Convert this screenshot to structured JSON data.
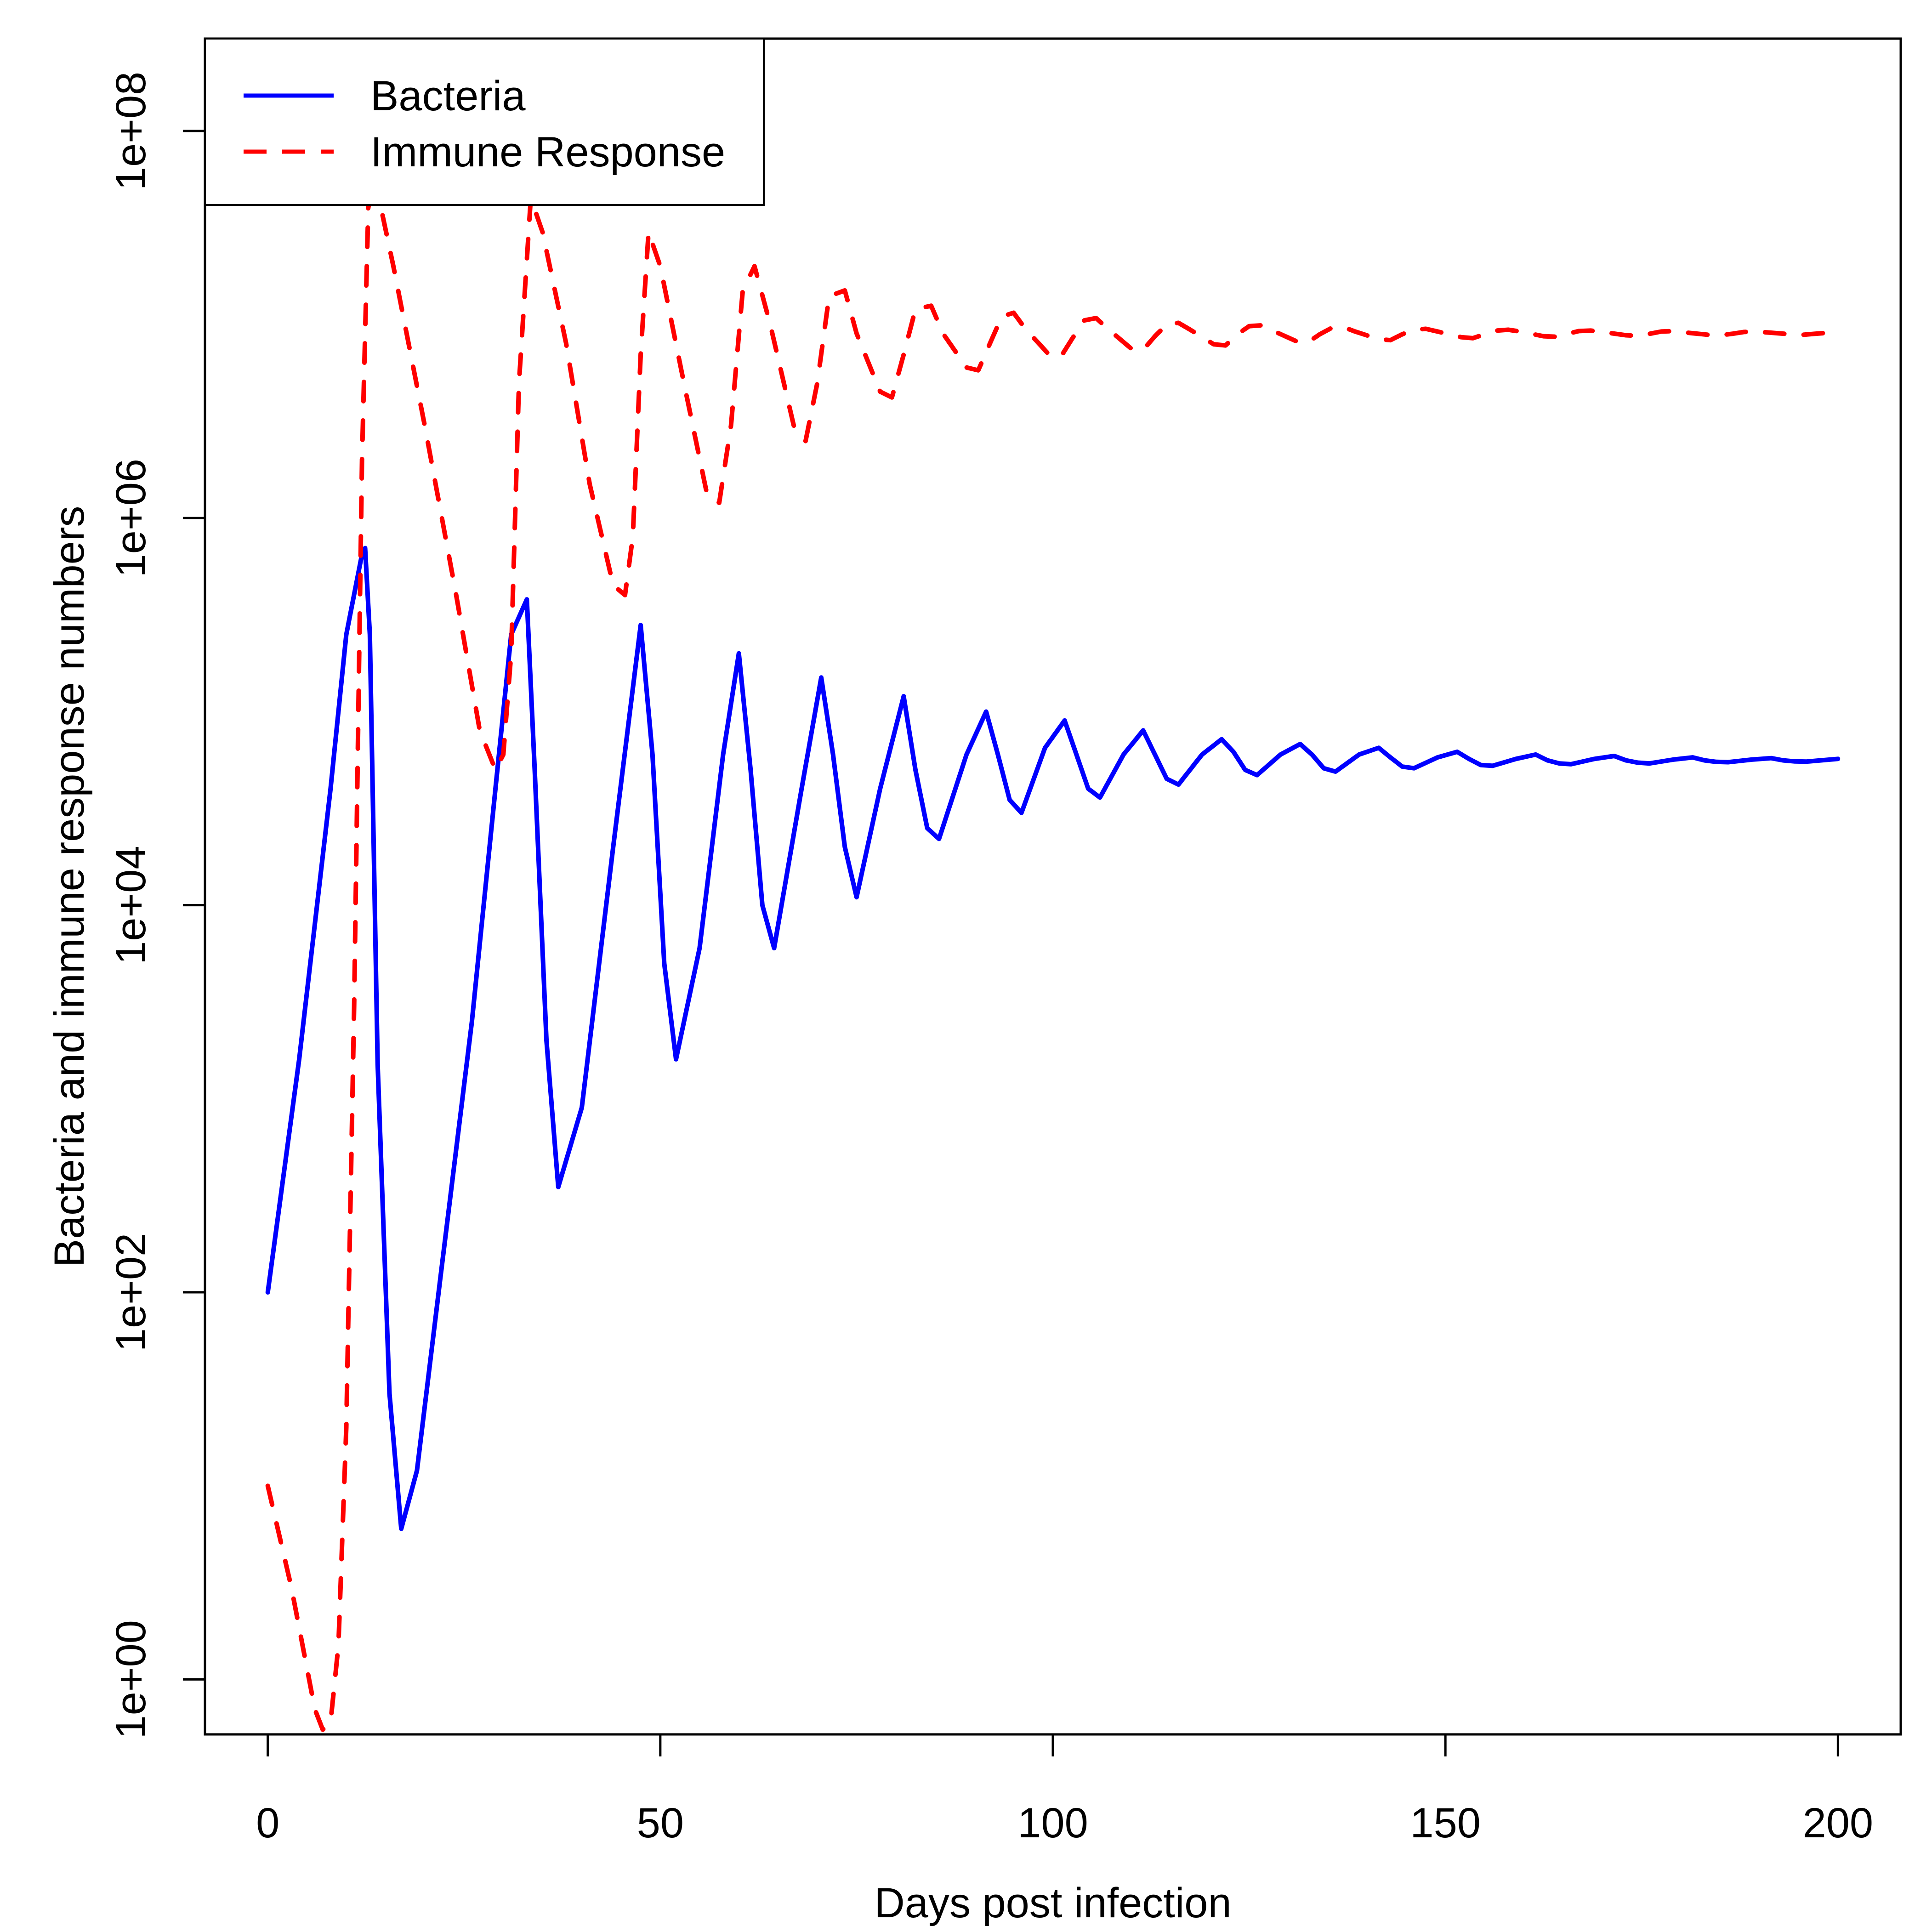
{
  "chart_data": {
    "type": "line",
    "title": "",
    "xlabel": "Days post infection",
    "ylabel": "Bacteria and immune response numbers",
    "xlim": [
      -8,
      208
    ],
    "ylim": [
      0.52,
      300000000
    ],
    "y_scale": "log",
    "grid": false,
    "legend_position": "top-left",
    "x_ticks": [
      {
        "value": 0,
        "label": "0"
      },
      {
        "value": 50,
        "label": "50"
      },
      {
        "value": 100,
        "label": "100"
      },
      {
        "value": 150,
        "label": "150"
      },
      {
        "value": 200,
        "label": "200"
      }
    ],
    "y_ticks": [
      {
        "value": 1,
        "label": "1e+00"
      },
      {
        "value": 100,
        "label": "1e+02"
      },
      {
        "value": 10000,
        "label": "1e+04"
      },
      {
        "value": 1000000,
        "label": "1e+06"
      },
      {
        "value": 100000000,
        "label": "1e+08"
      }
    ],
    "series": [
      {
        "name": "Bacteria",
        "color": "#0000ff",
        "line_style": "solid",
        "points": [
          [
            0,
            100
          ],
          [
            4,
            1600
          ],
          [
            8,
            40000
          ],
          [
            10,
            250000
          ],
          [
            12,
            650000
          ],
          [
            12.4,
            700000
          ],
          [
            13,
            250000
          ],
          [
            14,
            1500
          ],
          [
            15.5,
            30
          ],
          [
            17,
            6
          ],
          [
            19,
            12
          ],
          [
            22,
            120
          ],
          [
            26,
            2500
          ],
          [
            29,
            40000
          ],
          [
            31,
            250000
          ],
          [
            33,
            380000
          ],
          [
            34,
            50000
          ],
          [
            35.5,
            2000
          ],
          [
            37,
            350
          ],
          [
            40,
            900
          ],
          [
            44,
            20000
          ],
          [
            47.5,
            280000
          ],
          [
            49,
            60000
          ],
          [
            50.5,
            5000
          ],
          [
            52,
            1600
          ],
          [
            55,
            6000
          ],
          [
            58,
            60000
          ],
          [
            60,
            200000
          ],
          [
            61.5,
            50000
          ],
          [
            63,
            10000
          ],
          [
            64.5,
            6000
          ],
          [
            68,
            40000
          ],
          [
            70.5,
            150000
          ],
          [
            72,
            60000
          ],
          [
            73.5,
            20000
          ],
          [
            75,
            11000
          ],
          [
            78,
            40000
          ],
          [
            81,
            120000
          ],
          [
            82.5,
            50000
          ],
          [
            84,
            25000
          ],
          [
            85.5,
            22000
          ],
          [
            89,
            60000
          ],
          [
            91.5,
            100000
          ],
          [
            93,
            60000
          ],
          [
            94.5,
            35000
          ],
          [
            96,
            30000
          ],
          [
            99,
            65000
          ],
          [
            101.5,
            90000
          ],
          [
            103,
            60000
          ],
          [
            104.5,
            40000
          ],
          [
            106,
            36000
          ],
          [
            109,
            60000
          ],
          [
            111.5,
            80000
          ],
          [
            113,
            60000
          ],
          [
            114.5,
            45000
          ],
          [
            116,
            42000
          ],
          [
            119,
            60000
          ],
          [
            121.5,
            72000
          ],
          [
            123,
            62000
          ],
          [
            124.5,
            50000
          ],
          [
            126,
            47000
          ],
          [
            129,
            60000
          ],
          [
            131.5,
            68000
          ],
          [
            133,
            60000
          ],
          [
            134.5,
            51000
          ],
          [
            136,
            49000
          ],
          [
            139,
            60000
          ],
          [
            141.5,
            65000
          ],
          [
            143,
            58000
          ],
          [
            144.5,
            52000
          ],
          [
            146,
            51000
          ],
          [
            149,
            58000
          ],
          [
            151.5,
            62000
          ],
          [
            153,
            57000
          ],
          [
            154.5,
            53000
          ],
          [
            156,
            52500
          ],
          [
            159,
            57000
          ],
          [
            161.5,
            60000
          ],
          [
            163,
            56000
          ],
          [
            164.5,
            54000
          ],
          [
            166,
            53500
          ],
          [
            169,
            57000
          ],
          [
            171.5,
            59000
          ],
          [
            173,
            56000
          ],
          [
            174.5,
            54500
          ],
          [
            176,
            54000
          ],
          [
            179,
            56500
          ],
          [
            181.5,
            58000
          ],
          [
            183,
            56000
          ],
          [
            184.5,
            55000
          ],
          [
            186,
            54800
          ],
          [
            189,
            56500
          ],
          [
            191.5,
            57500
          ],
          [
            193,
            56000
          ],
          [
            194.5,
            55300
          ],
          [
            196,
            55200
          ],
          [
            200,
            57000
          ]
        ]
      },
      {
        "name": "Immune Response",
        "color": "#ff0000",
        "line_style": "dashed",
        "points": [
          [
            0,
            10
          ],
          [
            3,
            3
          ],
          [
            6,
            0.7
          ],
          [
            7,
            0.55
          ],
          [
            8,
            0.6
          ],
          [
            9,
            1.5
          ],
          [
            10,
            20
          ],
          [
            11,
            3000
          ],
          [
            12,
            2000000
          ],
          [
            12.8,
            40000000
          ],
          [
            13.5,
            60000000
          ],
          [
            16,
            20000000
          ],
          [
            20,
            3000000
          ],
          [
            24,
            400000
          ],
          [
            27,
            80000
          ],
          [
            29,
            50000
          ],
          [
            30,
            60000
          ],
          [
            31,
            200000
          ],
          [
            32,
            5000000
          ],
          [
            33.5,
            45000000
          ],
          [
            35,
            30000000
          ],
          [
            38,
            8000000
          ],
          [
            41,
            1500000
          ],
          [
            44,
            450000
          ],
          [
            45.5,
            400000
          ],
          [
            46.5,
            800000
          ],
          [
            47.5,
            7000000
          ],
          [
            48.5,
            30000000
          ],
          [
            50,
            20000000
          ],
          [
            53,
            5000000
          ],
          [
            56,
            1300000
          ],
          [
            57.5,
            1200000
          ],
          [
            59,
            3000000
          ],
          [
            60.5,
            15000000
          ],
          [
            62,
            20000000
          ],
          [
            64,
            10000000
          ],
          [
            67,
            3000000
          ],
          [
            68.5,
            2500000
          ],
          [
            70,
            5000000
          ],
          [
            71.5,
            14000000
          ],
          [
            73.5,
            15000000
          ],
          [
            75,
            9000000
          ],
          [
            78,
            4500000
          ],
          [
            79.5,
            4200000
          ],
          [
            81,
            7000000
          ],
          [
            82.5,
            12000000
          ],
          [
            84.5,
            12500000
          ],
          [
            86,
            9000000
          ],
          [
            89,
            6000000
          ],
          [
            90.5,
            5800000
          ],
          [
            92,
            8000000
          ],
          [
            93.5,
            11000000
          ],
          [
            95,
            11500000
          ],
          [
            96.5,
            9500000
          ],
          [
            99.5,
            7000000
          ],
          [
            101,
            6800000
          ],
          [
            102.5,
            8500000
          ],
          [
            104,
            10500000
          ],
          [
            105.5,
            10800000
          ],
          [
            107,
            9500000
          ],
          [
            110,
            7500000
          ],
          [
            111.5,
            7400000
          ],
          [
            113,
            8700000
          ],
          [
            114.5,
            10000000
          ],
          [
            116,
            10200000
          ],
          [
            117.5,
            9400000
          ],
          [
            120.5,
            7900000
          ],
          [
            122,
            7800000
          ],
          [
            123.5,
            8900000
          ],
          [
            125,
            9800000
          ],
          [
            126.5,
            9900000
          ],
          [
            128,
            9300000
          ],
          [
            131,
            8200000
          ],
          [
            132.5,
            8100000
          ],
          [
            134,
            8900000
          ],
          [
            135.5,
            9600000
          ],
          [
            137,
            9700000
          ],
          [
            138.5,
            9200000
          ],
          [
            141.5,
            8400000
          ],
          [
            143,
            8300000
          ],
          [
            144.5,
            8900000
          ],
          [
            146,
            9400000
          ],
          [
            147.5,
            9500000
          ],
          [
            149,
            9200000
          ],
          [
            152,
            8600000
          ],
          [
            153.5,
            8500000
          ],
          [
            155,
            8900000
          ],
          [
            156.5,
            9300000
          ],
          [
            158,
            9400000
          ],
          [
            159.5,
            9200000
          ],
          [
            162.5,
            8700000
          ],
          [
            164,
            8650000
          ],
          [
            165.5,
            8950000
          ],
          [
            167,
            9250000
          ],
          [
            168.5,
            9300000
          ],
          [
            170,
            9150000
          ],
          [
            173,
            8800000
          ],
          [
            174.5,
            8750000
          ],
          [
            176,
            8950000
          ],
          [
            177.5,
            9200000
          ],
          [
            179,
            9250000
          ],
          [
            180.5,
            9100000
          ],
          [
            183.5,
            8850000
          ],
          [
            185,
            8800000
          ],
          [
            186.5,
            8950000
          ],
          [
            188,
            9150000
          ],
          [
            189.5,
            9200000
          ],
          [
            191,
            9100000
          ],
          [
            194,
            8900000
          ],
          [
            195.5,
            8850000
          ],
          [
            197,
            8950000
          ],
          [
            200,
            9150000
          ]
        ]
      }
    ]
  }
}
